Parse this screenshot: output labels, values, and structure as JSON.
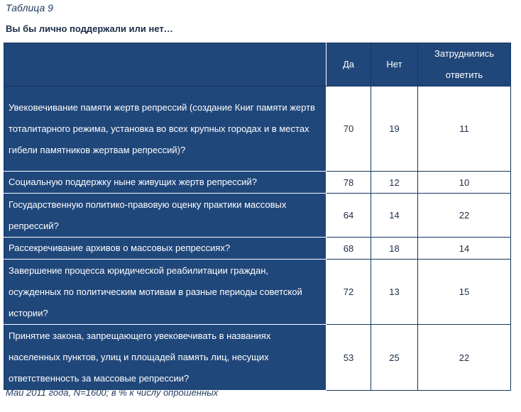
{
  "caption": "Таблица 9",
  "question": "Вы бы лично поддержали или нет…",
  "columns": [
    "",
    "Да",
    "Нет",
    "Затруднились ответить"
  ],
  "rows": [
    {
      "label": "Увековечивание памяти жертв репрессий (создание Книг памяти жертв тоталитарного режима, установка во всех крупных городах и в местах гибели памятников жертвам репрессий)?",
      "yes": "70",
      "no": "19",
      "unsure": "11"
    },
    {
      "label": "Социальную поддержку ныне живущих жертв репрессий?",
      "yes": "78",
      "no": "12",
      "unsure": "10"
    },
    {
      "label": "Государственную политико-правовую оценку практики массовых репрессий?",
      "yes": "64",
      "no": "14",
      "unsure": "22"
    },
    {
      "label": "Рассекречивание архивов о массовых репрессиях?",
      "yes": "68",
      "no": "18",
      "unsure": "14"
    },
    {
      "label": "Завершение процесса юридической реабилитации граждан, осужденных по политическим мотивам в разные периоды советской истории?",
      "yes": "72",
      "no": "13",
      "unsure": "15"
    },
    {
      "label": "Принятие закона, запрещающего увековечивать в названиях населенных пунктов, улиц и площадей память лиц, несущих ответственность за массовые репрессии?",
      "yes": "53",
      "no": "25",
      "unsure": "22"
    }
  ],
  "footer": "Май 2011 года, N=1600; в % к числу опрошенных",
  "colors": {
    "header_bg": "#20477a",
    "border": "#17365d"
  }
}
